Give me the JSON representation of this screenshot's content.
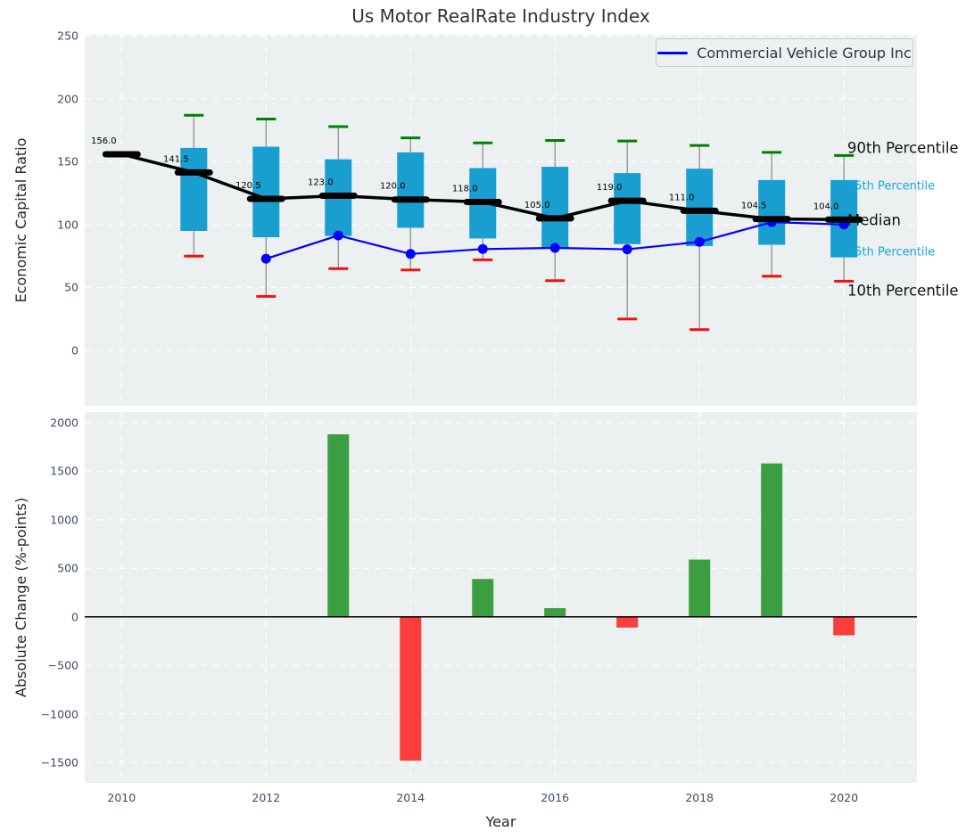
{
  "title": "Us Motor RealRate Industry Index",
  "legend": {
    "label": "Commercial Vehicle Group Inc"
  },
  "colors": {
    "panel_bg": "#ecf0f1",
    "grid": "#ffffff",
    "box": "#189fd0",
    "whisker": "#888888",
    "cap_high": "#008000",
    "cap_low": "#ee1111",
    "median": "#000000",
    "company_line": "#0000ff",
    "bar_positive": "#3b9e40",
    "bar_negative": "#fb3d3d",
    "tick_text": "#3d4c63",
    "cyan_label": "#17a7dc",
    "annotation_text": "#000000"
  },
  "chart_data": [
    {
      "type": "boxplot-line",
      "title": "Us Motor RealRate Industry Index",
      "ylabel": "Economic Capital Ratio",
      "ylim": [
        -44,
        251
      ],
      "yticks": [
        0,
        50,
        100,
        150,
        200,
        250
      ],
      "xlim": [
        2009.49,
        2021.01
      ],
      "xticks": [
        2010,
        2012,
        2014,
        2016,
        2018,
        2020
      ],
      "grid": true,
      "legend_position": "upper right",
      "years": [
        2010,
        2011,
        2012,
        2013,
        2014,
        2015,
        2016,
        2017,
        2018,
        2019,
        2020
      ],
      "median": [
        156.0,
        141.5,
        120.5,
        123.0,
        120.0,
        118.0,
        105.0,
        119.0,
        111.0,
        104.5,
        104.0
      ],
      "median_labels": [
        "156.0",
        "141.5",
        "120.5",
        "123.0",
        "120.0",
        "118.0",
        "105.0",
        "119.0",
        "111.0",
        "104.5",
        "104.0"
      ],
      "p90": [
        null,
        187,
        184,
        178,
        169,
        165,
        167,
        166.5,
        163,
        157.5,
        155
      ],
      "p75": [
        null,
        161,
        162,
        152,
        157.5,
        145,
        146,
        141,
        144.5,
        135.5,
        135.5
      ],
      "p25": [
        null,
        95,
        90,
        91,
        97.5,
        89,
        81,
        84.5,
        83,
        84,
        74
      ],
      "p10": [
        null,
        75,
        43,
        65,
        64,
        72,
        55.5,
        25,
        16.5,
        59,
        55
      ],
      "company_series": {
        "name": "Commercial Vehicle Group Inc",
        "years": [
          2012,
          2013,
          2014,
          2015,
          2016,
          2017,
          2018,
          2019,
          2020
        ],
        "values": [
          72.9,
          91.4,
          76.7,
          80.6,
          81.5,
          80.4,
          86.3,
          102.0,
          100.1
        ]
      },
      "right_labels": [
        {
          "text": "90th Percentile",
          "style": "black",
          "anchor": "p90",
          "dy": -8
        },
        {
          "text": "75th Percentile",
          "style": "cyan",
          "anchor": "p75",
          "dy": 7
        },
        {
          "text": "Median",
          "style": "black",
          "anchor": "median",
          "dy": 1
        },
        {
          "text": "25th Percentile",
          "style": "cyan",
          "anchor": "p25",
          "dy": -6
        },
        {
          "text": "10th Percentile",
          "style": "black",
          "anchor": "p10",
          "dy": 11
        }
      ]
    },
    {
      "type": "bar",
      "ylabel": "Absolute Change (%-points)",
      "xlabel": "Year",
      "ylim": [
        -1710,
        2110
      ],
      "yticks": [
        -1500,
        -1000,
        -500,
        0,
        500,
        1000,
        1500,
        2000
      ],
      "xlim": [
        2009.49,
        2021.01
      ],
      "xticks": [
        2010,
        2012,
        2014,
        2016,
        2018,
        2020
      ],
      "grid": true,
      "years": [
        2013,
        2014,
        2015,
        2016,
        2017,
        2018,
        2019,
        2020
      ],
      "values": [
        1880,
        -1480,
        390,
        90,
        -110,
        590,
        1580,
        -190
      ]
    }
  ]
}
